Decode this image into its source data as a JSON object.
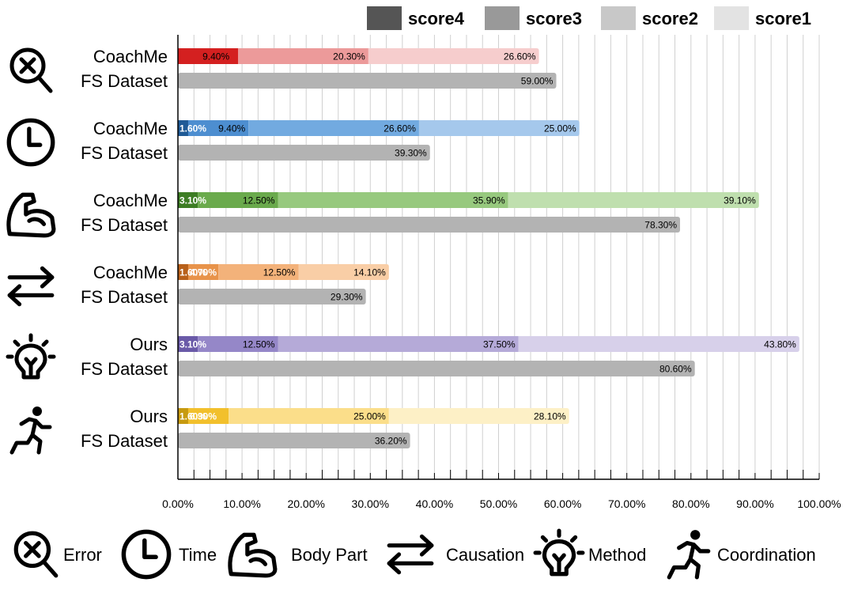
{
  "chart_data": {
    "type": "bar",
    "orientation": "horizontal",
    "stacked": true,
    "legend": {
      "position": "top-right",
      "entries": [
        {
          "key": "score4",
          "label": "score4",
          "color": "#555555"
        },
        {
          "key": "score3",
          "label": "score3",
          "color": "#999999"
        },
        {
          "key": "score2",
          "label": "score2",
          "color": "#c8c8c8"
        },
        {
          "key": "score1",
          "label": "score1",
          "color": "#e3e3e3"
        }
      ]
    },
    "x_axis": {
      "range": [
        0,
        100
      ],
      "tick_labels": [
        "0.00%",
        "10.00%",
        "20.00%",
        "30.00%",
        "40.00%",
        "50.00%",
        "60.00%",
        "70.00%",
        "80.00%",
        "90.00%",
        "100.00%"
      ],
      "grid": true
    },
    "groups": [
      {
        "icon": "magnifier-x-icon",
        "top": {
          "label": "CoachMe",
          "segments": [
            {
              "value": 9.4,
              "label": "9.40%",
              "color": "#d42020"
            },
            {
              "value": 20.3,
              "label": "20.30%",
              "color": "#ec9a9a"
            },
            {
              "value": 26.6,
              "label": "26.60%",
              "color": "#f6cdcd"
            }
          ]
        },
        "bottom": {
          "label": "FS Dataset",
          "value": 59.0,
          "value_label": "59.00%",
          "color": "#b3b3b3"
        }
      },
      {
        "icon": "clock-icon",
        "top": {
          "label": "CoachMe",
          "segments": [
            {
              "value": 1.6,
              "label": "1.60%",
              "color": "#1f5a96"
            },
            {
              "value": 9.4,
              "label": "9.40%",
              "color": "#4d8ed0"
            },
            {
              "value": 26.6,
              "label": "26.60%",
              "color": "#72aae0"
            },
            {
              "value": 25.0,
              "label": "25.00%",
              "color": "#a5c8ec"
            }
          ]
        },
        "bottom": {
          "label": "FS Dataset",
          "value": 39.3,
          "value_label": "39.30%",
          "color": "#b3b3b3"
        }
      },
      {
        "icon": "flexed-arm-icon",
        "top": {
          "label": "CoachMe",
          "segments": [
            {
              "value": 3.1,
              "label": "3.10%",
              "color": "#3d7d24"
            },
            {
              "value": 12.5,
              "label": "12.50%",
              "color": "#6aaa4c"
            },
            {
              "value": 35.9,
              "label": "35.90%",
              "color": "#97c97e"
            },
            {
              "value": 39.1,
              "label": "39.10%",
              "color": "#bfdfae"
            }
          ]
        },
        "bottom": {
          "label": "FS Dataset",
          "value": 78.3,
          "value_label": "78.30%",
          "color": "#b3b3b3"
        }
      },
      {
        "icon": "exchange-arrows-icon",
        "top": {
          "label": "CoachMe",
          "segments": [
            {
              "value": 1.6,
              "label": "1.60%",
              "color": "#b8601a"
            },
            {
              "value": 4.7,
              "label": "4.70%",
              "color": "#e8934a"
            },
            {
              "value": 12.5,
              "label": "12.50%",
              "color": "#f3b27a"
            },
            {
              "value": 14.1,
              "label": "14.10%",
              "color": "#f9cea6"
            }
          ]
        },
        "bottom": {
          "label": "FS Dataset",
          "value": 29.3,
          "value_label": "29.30%",
          "color": "#b3b3b3"
        }
      },
      {
        "icon": "lightbulb-icon",
        "top": {
          "label": "Ours",
          "segments": [
            {
              "value": 3.1,
              "label": "3.10%",
              "color": "#6a5aa8"
            },
            {
              "value": 12.5,
              "label": "12.50%",
              "color": "#9587c8"
            },
            {
              "value": 37.5,
              "label": "37.50%",
              "color": "#b5aad8"
            },
            {
              "value": 43.8,
              "label": "43.80%",
              "color": "#d7d0ea"
            }
          ]
        },
        "bottom": {
          "label": "FS Dataset",
          "value": 80.6,
          "value_label": "80.60%",
          "color": "#b3b3b3"
        }
      },
      {
        "icon": "running-person-icon",
        "top": {
          "label": "Ours",
          "segments": [
            {
              "value": 1.6,
              "label": "1.60%",
              "color": "#c79a10"
            },
            {
              "value": 6.3,
              "label": "6.30%",
              "color": "#f2c02c"
            },
            {
              "value": 25.0,
              "label": "25.00%",
              "color": "#fbde8a"
            },
            {
              "value": 28.1,
              "label": "28.10%",
              "color": "#fdf0c6"
            }
          ]
        },
        "bottom": {
          "label": "FS Dataset",
          "value": 36.2,
          "value_label": "36.20%",
          "color": "#b3b3b3"
        }
      }
    ]
  },
  "bottom_legend": [
    {
      "icon": "magnifier-x-icon",
      "label": "Error"
    },
    {
      "icon": "clock-icon",
      "label": "Time"
    },
    {
      "icon": "flexed-arm-icon",
      "label": "Body Part"
    },
    {
      "icon": "exchange-arrows-icon",
      "label": "Causation"
    },
    {
      "icon": "lightbulb-icon",
      "label": "Method"
    },
    {
      "icon": "running-person-icon",
      "label": "Coordination"
    }
  ]
}
